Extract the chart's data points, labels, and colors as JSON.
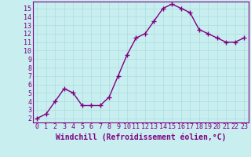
{
  "x": [
    0,
    1,
    2,
    3,
    4,
    5,
    6,
    7,
    8,
    9,
    10,
    11,
    12,
    13,
    14,
    15,
    16,
    17,
    18,
    19,
    20,
    21,
    22,
    23
  ],
  "y": [
    2,
    2.5,
    4,
    5.5,
    5,
    3.5,
    3.5,
    3.5,
    4.5,
    7,
    9.5,
    11.5,
    12,
    13.5,
    15,
    15.5,
    15,
    14.5,
    12.5,
    12,
    11.5,
    11,
    11,
    11.5
  ],
  "line_color": "#800080",
  "marker": "+",
  "marker_size": 4,
  "bg_color": "#c8eef0",
  "grid_color": "#aadddd",
  "xlabel": "Windchill (Refroidissement éolien,°C)",
  "xlabel_color": "#800080",
  "yticks": [
    2,
    3,
    4,
    5,
    6,
    7,
    8,
    9,
    10,
    11,
    12,
    13,
    14,
    15
  ],
  "xlim": [
    -0.5,
    23.5
  ],
  "ylim": [
    1.5,
    15.8
  ],
  "tick_color": "#800080",
  "tick_fontsize": 6,
  "xlabel_fontsize": 7,
  "linewidth": 1.0
}
